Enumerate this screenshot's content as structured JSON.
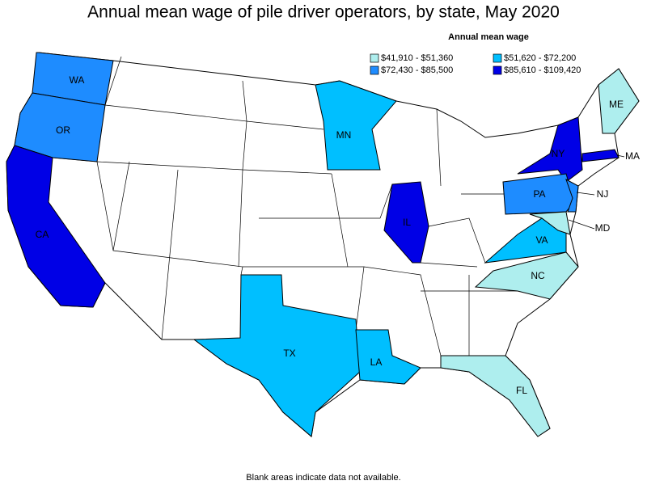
{
  "title": "Annual mean wage of pile driver operators, by state, May 2020",
  "legend": {
    "title": "Annual mean wage",
    "items": [
      {
        "label": "$41,910 - $51,360",
        "color": "#aeeeee"
      },
      {
        "label": "$51,620 - $72,200",
        "color": "#00bfff"
      },
      {
        "label": "$72,430 - $85,500",
        "color": "#1e8cff"
      },
      {
        "label": "$85,610 - $109,420",
        "color": "#0000e6"
      }
    ]
  },
  "states": [
    {
      "label": "WA",
      "color": "#1e8cff"
    },
    {
      "label": "OR",
      "color": "#1e8cff"
    },
    {
      "label": "CA",
      "color": "#0000e6"
    },
    {
      "label": "MN",
      "color": "#00bfff"
    },
    {
      "label": "IL",
      "color": "#0000e6"
    },
    {
      "label": "TX",
      "color": "#00bfff"
    },
    {
      "label": "LA",
      "color": "#00bfff"
    },
    {
      "label": "NY",
      "color": "#0000e6"
    },
    {
      "label": "PA",
      "color": "#1e8cff"
    },
    {
      "label": "NJ",
      "color": "#1e8cff"
    },
    {
      "label": "MA",
      "color": "#0000e6"
    },
    {
      "label": "VA",
      "color": "#00bfff"
    },
    {
      "label": "MD",
      "color": "#aeeeee"
    },
    {
      "label": "NC",
      "color": "#aeeeee"
    },
    {
      "label": "FL",
      "color": "#aeeeee"
    },
    {
      "label": "ME",
      "color": "#aeeeee"
    }
  ],
  "footnote": "Blank areas indicate data not available."
}
